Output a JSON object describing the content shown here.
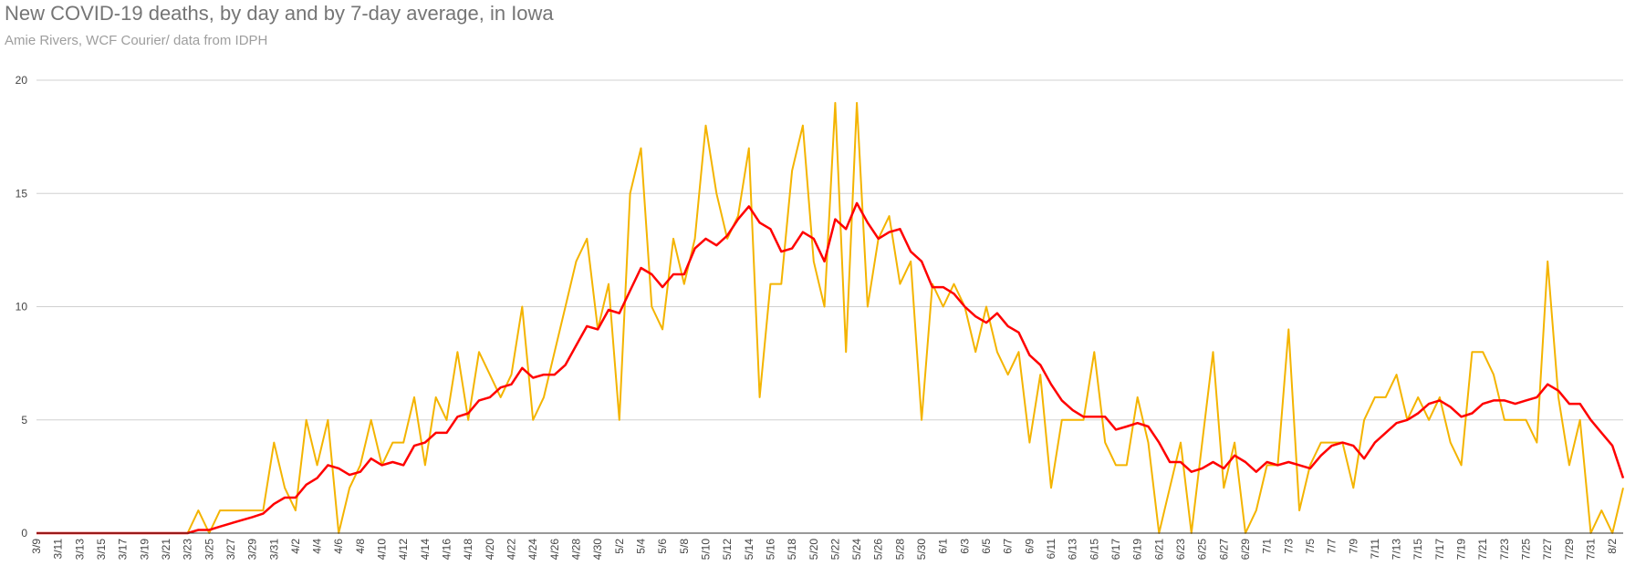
{
  "chart_data": {
    "type": "line",
    "title": "New COVID-19 deaths, by day and by 7-day average, in Iowa",
    "subtitle": "Amie Rivers, WCF Courier/ data from IDPH",
    "xlabel": "",
    "ylabel": "",
    "ylim": [
      0,
      20
    ],
    "yticks": [
      0,
      5,
      10,
      15,
      20
    ],
    "grid": true,
    "legend": "none",
    "x_labels": [
      "3/9",
      "3/11",
      "3/13",
      "3/15",
      "3/17",
      "3/19",
      "3/21",
      "3/23",
      "3/25",
      "3/27",
      "3/29",
      "3/31",
      "4/2",
      "4/4",
      "4/6",
      "4/8",
      "4/10",
      "4/12",
      "4/14",
      "4/16",
      "4/18",
      "4/20",
      "4/22",
      "4/24",
      "4/26",
      "4/28",
      "4/30",
      "5/2",
      "5/4",
      "5/6",
      "5/8",
      "5/10",
      "5/12",
      "5/14",
      "5/16",
      "5/18",
      "5/20",
      "5/22",
      "5/24",
      "5/26",
      "5/28",
      "5/30",
      "6/1",
      "6/3",
      "6/5",
      "6/7",
      "6/9",
      "6/11",
      "6/13",
      "6/15",
      "6/17",
      "6/19",
      "6/21",
      "6/23",
      "6/25",
      "6/27",
      "6/29",
      "7/1",
      "7/3",
      "7/5",
      "7/7",
      "7/9",
      "7/11",
      "7/13",
      "7/15",
      "7/17",
      "7/19",
      "7/21",
      "7/23",
      "7/25",
      "7/27",
      "7/29",
      "7/31",
      "8/2"
    ],
    "series": [
      {
        "color": "#f4b400",
        "x": [
          "3/9",
          "3/15",
          "3/23",
          "3/24",
          "3/25",
          "3/26",
          "3/27",
          "3/28",
          "3/29",
          "3/30",
          "3/31",
          "4/1",
          "4/2",
          "4/3",
          "4/4",
          "4/5",
          "4/6",
          "4/7",
          "4/8",
          "4/9",
          "4/10",
          "4/11",
          "4/12",
          "4/13",
          "4/14",
          "4/15",
          "4/16",
          "4/17",
          "4/18",
          "4/19",
          "4/20",
          "4/21",
          "4/22",
          "4/23",
          "4/24",
          "4/25",
          "4/26",
          "4/27",
          "4/28",
          "4/29",
          "4/30",
          "5/1",
          "5/2",
          "5/3",
          "5/4",
          "5/5",
          "5/6",
          "5/7",
          "5/8",
          "5/9",
          "5/10",
          "5/11",
          "5/12",
          "5/13",
          "5/14",
          "5/15",
          "5/16",
          "5/17",
          "5/18",
          "5/19",
          "5/20",
          "5/21",
          "5/22",
          "5/23",
          "5/24",
          "5/25",
          "5/26",
          "5/27",
          "5/28",
          "5/29",
          "5/30",
          "5/31",
          "6/1",
          "6/2",
          "6/3",
          "6/4",
          "6/5",
          "6/6",
          "6/7",
          "6/8",
          "6/9",
          "6/10",
          "6/11",
          "6/12",
          "6/13",
          "6/14",
          "6/15",
          "6/16",
          "6/17",
          "6/18",
          "6/19",
          "6/20",
          "6/21",
          "6/22",
          "6/23",
          "6/24",
          "6/25",
          "6/26",
          "6/27",
          "6/28",
          "6/29",
          "6/30",
          "7/1",
          "7/2",
          "7/3",
          "7/4",
          "7/5",
          "7/6",
          "7/7",
          "7/8",
          "7/9",
          "7/10",
          "7/11",
          "7/12",
          "7/13",
          "7/14",
          "7/15",
          "7/16",
          "7/17",
          "7/18",
          "7/19",
          "7/20",
          "7/21",
          "7/22",
          "7/23",
          "7/24",
          "7/25",
          "7/26",
          "7/27",
          "7/28",
          "7/29",
          "7/30",
          "7/31",
          "8/1",
          "8/2",
          "8/3"
        ],
        "values": [
          0,
          0,
          0,
          1,
          0,
          1,
          1,
          1,
          1,
          1,
          4,
          2,
          1,
          5,
          3,
          5,
          0,
          2,
          3,
          5,
          3,
          4,
          4,
          6,
          3,
          6,
          5,
          8,
          5,
          8,
          7,
          6,
          7,
          10,
          5,
          6,
          8,
          10,
          12,
          13,
          9,
          11,
          5,
          15,
          17,
          10,
          9,
          13,
          11,
          13,
          18,
          15,
          13,
          14,
          17,
          6,
          11,
          11,
          16,
          18,
          12,
          10,
          19,
          8,
          19,
          10,
          13,
          14,
          11,
          12,
          5,
          11,
          10,
          11,
          10,
          8,
          10,
          8,
          7,
          8,
          4,
          7,
          2,
          5,
          5,
          5,
          8,
          4,
          3,
          3,
          6,
          4,
          0,
          2,
          4,
          0,
          4,
          8,
          2,
          4,
          0,
          1,
          3,
          3,
          9,
          1,
          3,
          4,
          4,
          4,
          2,
          5,
          6,
          6,
          7,
          5,
          6,
          5,
          6,
          4,
          3,
          8,
          8,
          7,
          5,
          5,
          5,
          4,
          12,
          6,
          3,
          5,
          0,
          1,
          0,
          2
        ]
      },
      {
        "color": "#ff0000",
        "x": [
          "3/9",
          "3/23",
          "3/24",
          "3/25",
          "3/26",
          "3/27",
          "3/28",
          "3/29",
          "3/30",
          "3/31",
          "4/1",
          "4/2",
          "4/3",
          "4/4",
          "4/5",
          "4/6",
          "4/7",
          "4/8",
          "4/9",
          "4/10",
          "4/11",
          "4/12",
          "4/13",
          "4/14",
          "4/15",
          "4/16",
          "4/17",
          "4/18",
          "4/19",
          "4/20",
          "4/21",
          "4/22",
          "4/23",
          "4/24",
          "4/25",
          "4/26",
          "4/27",
          "4/28",
          "4/29",
          "4/30",
          "5/1",
          "5/2",
          "5/3",
          "5/4",
          "5/5",
          "5/6",
          "5/7",
          "5/8",
          "5/9",
          "5/10",
          "5/11",
          "5/12",
          "5/13",
          "5/14",
          "5/15",
          "5/16",
          "5/17",
          "5/18",
          "5/19",
          "5/20",
          "5/21",
          "5/22",
          "5/23",
          "5/24",
          "5/25",
          "5/26",
          "5/27",
          "5/28",
          "5/29",
          "5/30",
          "5/31",
          "6/1",
          "6/2",
          "6/3",
          "6/4",
          "6/5",
          "6/6",
          "6/7",
          "6/8",
          "6/9",
          "6/10",
          "6/11",
          "6/12",
          "6/13",
          "6/14",
          "6/15",
          "6/16",
          "6/17",
          "6/18",
          "6/19",
          "6/20",
          "6/21",
          "6/22",
          "6/23",
          "6/24",
          "6/25",
          "6/26",
          "6/27",
          "6/28",
          "6/29",
          "6/30",
          "7/1",
          "7/2",
          "7/3",
          "7/4",
          "7/5",
          "7/6",
          "7/7",
          "7/8",
          "7/9",
          "7/10",
          "7/11",
          "7/12",
          "7/13",
          "7/14",
          "7/15",
          "7/16",
          "7/17",
          "7/18",
          "7/19",
          "7/20",
          "7/21",
          "7/22",
          "7/23",
          "7/24",
          "7/25",
          "7/26",
          "7/27",
          "7/28",
          "7/29",
          "7/30",
          "7/31",
          "8/1",
          "8/2",
          "8/3"
        ],
        "values": [
          0,
          0,
          0.14,
          0.14,
          0.29,
          0.43,
          0.57,
          0.71,
          0.86,
          1.29,
          1.57,
          1.57,
          2.14,
          2.43,
          3,
          2.86,
          2.57,
          2.71,
          3.29,
          3,
          3.14,
          3,
          3.86,
          4,
          4.43,
          4.43,
          5.14,
          5.29,
          5.86,
          6,
          6.43,
          6.57,
          7.29,
          6.86,
          7,
          7,
          7.43,
          8.29,
          9.14,
          9,
          9.86,
          9.71,
          10.71,
          11.71,
          11.43,
          10.86,
          11.43,
          11.43,
          12.57,
          13,
          12.71,
          13.14,
          13.86,
          14.43,
          13.71,
          13.43,
          12.43,
          12.57,
          13.29,
          13,
          12,
          13.86,
          13.43,
          14.57,
          13.71,
          13,
          13.29,
          13.43,
          12.43,
          12,
          10.86,
          10.86,
          10.57,
          10,
          9.57,
          9.29,
          9.71,
          9.14,
          8.86,
          7.86,
          7.43,
          6.57,
          5.86,
          5.43,
          5.14,
          5.14,
          5.14,
          4.57,
          4.71,
          4.86,
          4.71,
          4,
          3.14,
          3.14,
          2.71,
          2.86,
          3.14,
          2.86,
          3.43,
          3.14,
          2.71,
          3.14,
          3,
          3.14,
          3,
          2.86,
          3.43,
          3.86,
          4,
          3.86,
          3.29,
          4,
          4.43,
          4.86,
          5,
          5.29,
          5.71,
          5.86,
          5.57,
          5.14,
          5.29,
          5.71,
          5.86,
          5.86,
          5.71,
          5.86,
          6,
          6.57,
          6.29,
          5.71,
          5.71,
          5,
          4.43,
          3.86,
          2.43
        ]
      }
    ]
  }
}
